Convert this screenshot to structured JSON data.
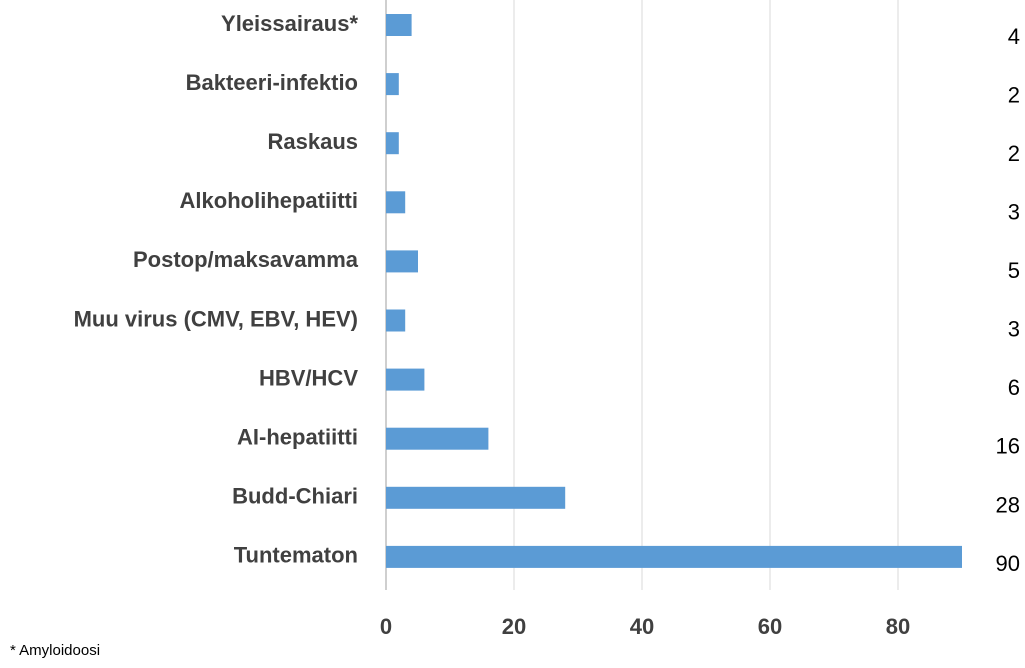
{
  "chart_data": {
    "type": "bar",
    "orientation": "horizontal",
    "categories": [
      "Yleissairaus*",
      "Bakteeri-infektio",
      "Raskaus",
      "Alkoholihepatiitti",
      "Postop/maksavamma",
      "Muu virus (CMV, EBV, HEV)",
      "HBV/HCV",
      "AI-hepatiitti",
      "Budd-Chiari",
      "Tuntematon"
    ],
    "values": [
      4,
      2,
      2,
      3,
      5,
      3,
      6,
      16,
      28,
      90
    ],
    "color": "#5b9bd5",
    "xlim": [
      0,
      90
    ],
    "xticks": [
      0,
      20,
      40,
      60,
      80
    ],
    "grid": true,
    "annotation": "* Amyloidoosi"
  }
}
